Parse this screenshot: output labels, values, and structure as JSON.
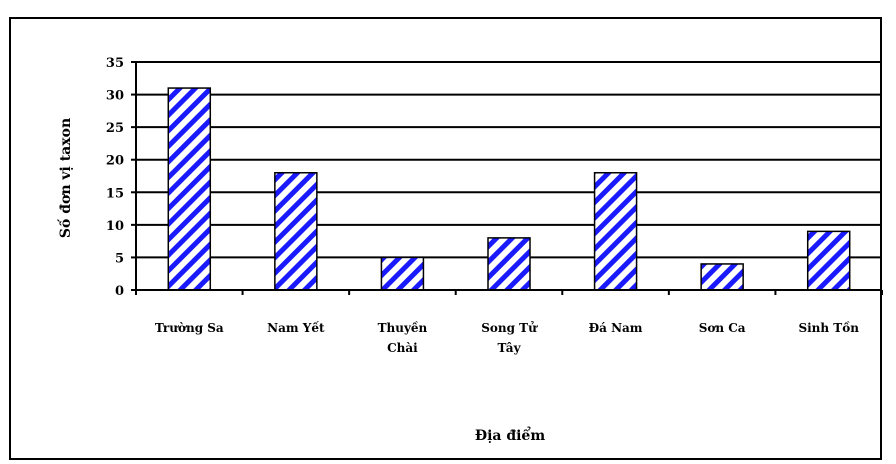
{
  "chart_data": {
    "type": "bar",
    "categories": [
      [
        "Trường Sa"
      ],
      [
        "Nam Yết"
      ],
      [
        "Thuyền",
        "Chài"
      ],
      [
        "Song Tử",
        "Tây"
      ],
      [
        "Đá Nam"
      ],
      [
        "Sơn Ca"
      ],
      [
        "Sinh Tồn"
      ]
    ],
    "values": [
      31,
      18,
      5,
      8,
      18,
      4,
      9
    ],
    "xlabel": "Địa điểm",
    "ylabel": "Số đơn vị taxon",
    "ylim": [
      0,
      35
    ],
    "yticks": [
      0,
      5,
      10,
      15,
      20,
      25,
      30,
      35
    ],
    "grid": true,
    "bar_pattern": "diagonal-hatch",
    "colors": {
      "hatch": "#1a1aff",
      "bar_fill": "#ffffff",
      "axis": "#000000",
      "grid": "#000000"
    }
  }
}
